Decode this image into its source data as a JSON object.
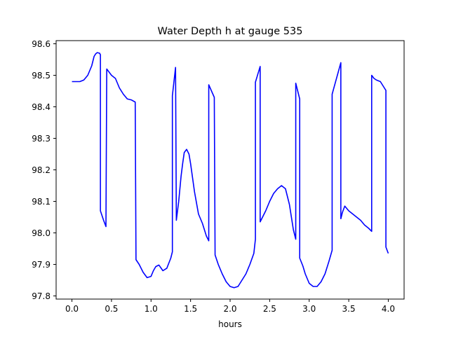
{
  "chart_data": {
    "type": "line",
    "title": "Water Depth h at gauge 535",
    "xlabel": "hours",
    "ylabel": "",
    "xlim": [
      -0.2,
      4.2
    ],
    "ylim": [
      97.79,
      98.61
    ],
    "grid": false,
    "x_ticks": [
      0.0,
      0.5,
      1.0,
      1.5,
      2.0,
      2.5,
      3.0,
      3.5,
      4.0
    ],
    "x_tick_labels": [
      "0.0",
      "0.5",
      "1.0",
      "1.5",
      "2.0",
      "2.5",
      "3.0",
      "3.5",
      "4.0"
    ],
    "y_ticks": [
      97.8,
      97.9,
      98.0,
      98.1,
      98.2,
      98.3,
      98.4,
      98.5,
      98.6
    ],
    "y_tick_labels": [
      "97.8",
      "97.9",
      "98.0",
      "98.1",
      "98.2",
      "98.3",
      "98.4",
      "98.5",
      "98.6"
    ],
    "series": [
      {
        "color": "#0000ff",
        "x": [
          0.0,
          0.1,
          0.15,
          0.2,
          0.25,
          0.28,
          0.3,
          0.32,
          0.35,
          0.36,
          0.36,
          0.4,
          0.43,
          0.44,
          0.5,
          0.55,
          0.6,
          0.65,
          0.7,
          0.75,
          0.8,
          0.81,
          0.85,
          0.9,
          0.95,
          1.0,
          1.03,
          1.06,
          1.1,
          1.15,
          1.2,
          1.25,
          1.27,
          1.27,
          1.31,
          1.32,
          1.35,
          1.38,
          1.4,
          1.42,
          1.45,
          1.48,
          1.5,
          1.55,
          1.6,
          1.65,
          1.7,
          1.73,
          1.73,
          1.8,
          1.81,
          1.85,
          1.9,
          1.95,
          2.0,
          2.05,
          2.1,
          2.15,
          2.2,
          2.25,
          2.3,
          2.32,
          2.32,
          2.38,
          2.38,
          2.45,
          2.5,
          2.55,
          2.6,
          2.65,
          2.7,
          2.75,
          2.8,
          2.83,
          2.83,
          2.88,
          2.88,
          2.92,
          2.95,
          3.0,
          3.05,
          3.1,
          3.15,
          3.2,
          3.25,
          3.29,
          3.29,
          3.4,
          3.4,
          3.42,
          3.45,
          3.5,
          3.55,
          3.6,
          3.65,
          3.7,
          3.75,
          3.79,
          3.79,
          3.82,
          3.85,
          3.9,
          3.95,
          3.97,
          3.97,
          4.0
        ],
        "y": [
          98.48,
          98.48,
          98.485,
          98.5,
          98.53,
          98.56,
          98.568,
          98.572,
          98.57,
          98.565,
          98.07,
          98.04,
          98.02,
          98.52,
          98.5,
          98.49,
          98.46,
          98.44,
          98.425,
          98.422,
          98.415,
          97.915,
          97.9,
          97.875,
          97.858,
          97.862,
          97.88,
          97.893,
          97.898,
          97.88,
          97.888,
          97.92,
          97.94,
          98.435,
          98.525,
          98.04,
          98.1,
          98.18,
          98.22,
          98.255,
          98.265,
          98.25,
          98.22,
          98.13,
          98.06,
          98.03,
          97.99,
          97.975,
          98.47,
          98.43,
          97.93,
          97.9,
          97.87,
          97.845,
          97.83,
          97.826,
          97.83,
          97.85,
          97.87,
          97.9,
          97.935,
          97.98,
          98.478,
          98.528,
          98.035,
          98.07,
          98.1,
          98.125,
          98.14,
          98.15,
          98.14,
          98.09,
          98.01,
          97.98,
          98.475,
          98.425,
          97.92,
          97.895,
          97.87,
          97.84,
          97.83,
          97.83,
          97.845,
          97.87,
          97.91,
          97.945,
          98.44,
          98.54,
          98.045,
          98.065,
          98.085,
          98.07,
          98.06,
          98.05,
          98.04,
          98.025,
          98.015,
          98.005,
          98.5,
          98.49,
          98.485,
          98.48,
          98.46,
          98.452,
          97.955,
          97.935
        ]
      }
    ]
  }
}
